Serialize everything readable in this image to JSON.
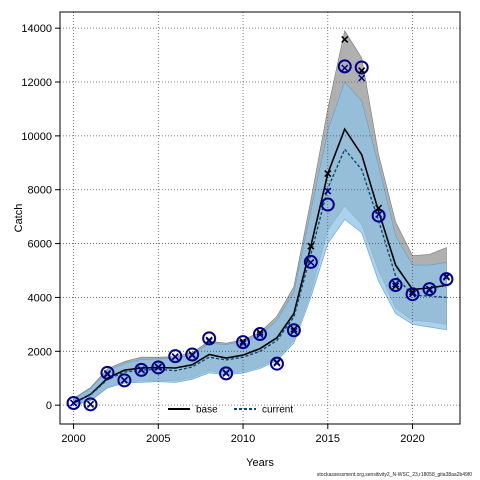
{
  "chart_data": {
    "type": "line",
    "xlabel": "Years",
    "ylabel": "Catch",
    "xlim": [
      1999.2,
      2022.8
    ],
    "ylim": [
      -700,
      14600
    ],
    "x_ticks": [
      2000,
      2005,
      2010,
      2015,
      2020
    ],
    "y_ticks": [
      0,
      2000,
      4000,
      6000,
      8000,
      10000,
      12000,
      14000
    ],
    "grid": true,
    "legend_placement": "bottom-center",
    "colors": {
      "base_band": "#9c9c9c",
      "base_line": "#000000",
      "base_marker": "#000000",
      "current_band": "#8fc3e6",
      "current_line": "#0b4a6f",
      "current_marker": "#00008b",
      "grid": "#555555"
    },
    "years": [
      2000,
      2001,
      2002,
      2003,
      2004,
      2005,
      2006,
      2007,
      2008,
      2009,
      2010,
      2011,
      2012,
      2013,
      2014,
      2015,
      2016,
      2017,
      2018,
      2019,
      2020,
      2021,
      2022
    ],
    "observed": [
      80,
      30,
      1200,
      920,
      1310,
      1400,
      1820,
      1880,
      2480,
      1180,
      2340,
      2640,
      1540,
      2780,
      5320,
      7450,
      12580,
      12540,
      7040,
      4460,
      4120,
      4310,
      4680
    ],
    "series": [
      {
        "name": "base",
        "fitted": [
          80,
          400,
          1000,
          1300,
          1380,
          1400,
          1380,
          1500,
          1880,
          1750,
          1860,
          2100,
          2500,
          3400,
          5900,
          8600,
          10250,
          9300,
          7200,
          5200,
          4300,
          4350,
          4450
        ],
        "lower": [
          0,
          180,
          680,
          860,
          900,
          920,
          900,
          1020,
          1280,
          1170,
          1250,
          1420,
          1720,
          2400,
          4200,
          6500,
          7400,
          6700,
          5000,
          3600,
          3150,
          3100,
          3000
        ],
        "upper": [
          250,
          650,
          1350,
          1620,
          1780,
          1780,
          1800,
          1950,
          2380,
          2300,
          2430,
          2700,
          3300,
          4400,
          7600,
          11000,
          13900,
          12900,
          9300,
          6800,
          5550,
          5600,
          5850
        ],
        "points": [
          80,
          30,
          1150,
          930,
          1320,
          1420,
          1800,
          1880,
          2420,
          1200,
          2360,
          2700,
          1590,
          2820,
          5900,
          8600,
          13580,
          12420,
          7320,
          4420,
          4200,
          4310,
          4780
        ]
      },
      {
        "name": "current",
        "fitted": [
          80,
          380,
          950,
          1230,
          1300,
          1330,
          1280,
          1420,
          1780,
          1680,
          1780,
          2000,
          2400,
          3280,
          5600,
          8050,
          9500,
          8750,
          6850,
          4800,
          4080,
          4050,
          4000
        ],
        "lower": [
          0,
          160,
          640,
          820,
          850,
          870,
          840,
          960,
          1200,
          1120,
          1190,
          1360,
          1650,
          2300,
          4000,
          6000,
          6900,
          6400,
          4600,
          3400,
          3000,
          2900,
          2800
        ],
        "upper": [
          220,
          620,
          1280,
          1550,
          1700,
          1720,
          1730,
          1870,
          2300,
          2250,
          2360,
          2600,
          3150,
          4200,
          7200,
          10200,
          12000,
          11300,
          8900,
          6300,
          5200,
          5200,
          5300
        ],
        "points": [
          80,
          30,
          1180,
          920,
          1300,
          1400,
          1800,
          1850,
          2380,
          1180,
          2300,
          2620,
          1560,
          2740,
          5300,
          7950,
          12520,
          12150,
          7080,
          4500,
          4130,
          4270,
          4750
        ]
      }
    ]
  },
  "legend": {
    "base_label": "base",
    "current_label": "current"
  },
  "footer": "stockassessment.org,sensitivity2_N-WSC_23,r18058_gita38aa2b49f0"
}
